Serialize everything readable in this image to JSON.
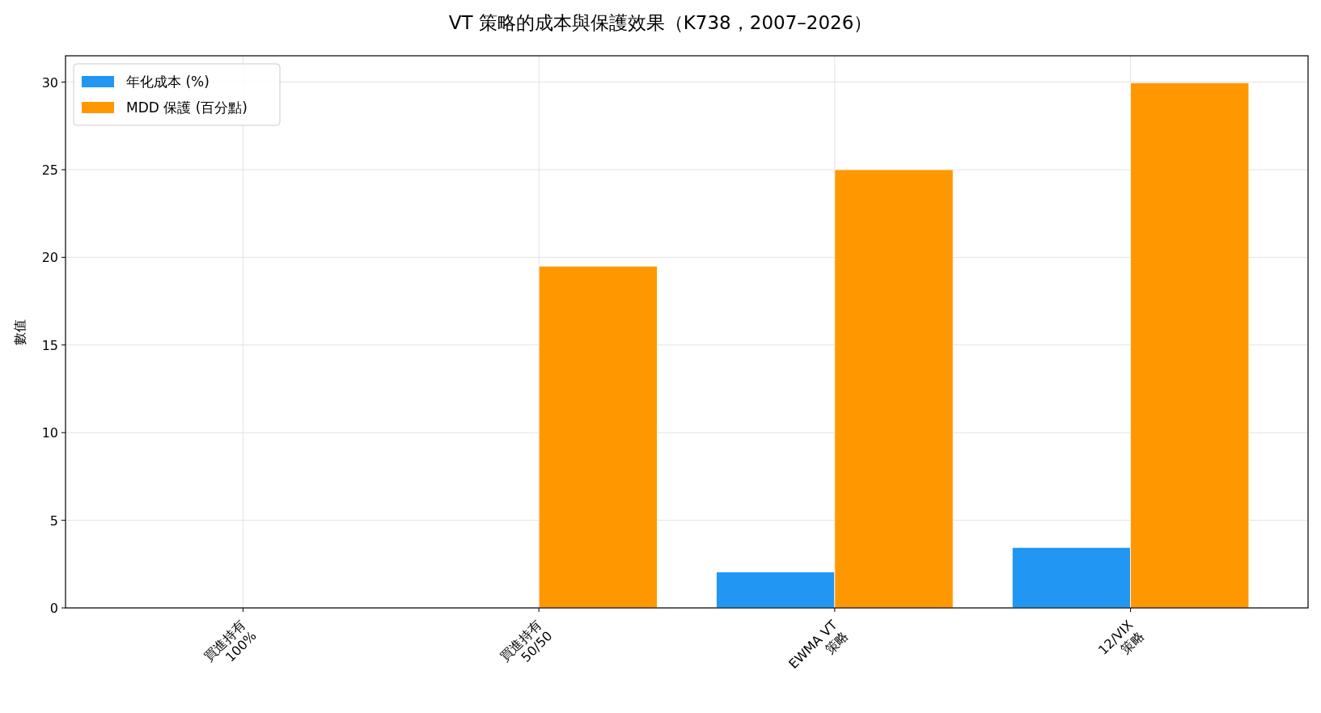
{
  "chart_data": {
    "type": "bar",
    "title": "VT 策略的成本與保護效果（K738，2007–2026）",
    "ylabel": "數值",
    "categories": [
      "買進持有\n100%",
      "買進持有\n50/50",
      "EWMA VT\n策略",
      "12/VIX\n策略"
    ],
    "series": [
      {
        "name": "年化成本 (%)",
        "color": "#2196f3",
        "values": [
          0,
          0,
          2.05,
          3.45
        ]
      },
      {
        "name": "MDD 保護 (百分點)",
        "color": "#ff9800",
        "values": [
          0,
          19.5,
          25,
          29.95
        ]
      }
    ],
    "ylim": [
      0,
      31.5
    ],
    "yticks": [
      0,
      5,
      10,
      15,
      20,
      25,
      30
    ],
    "grid": true,
    "legend": "top left"
  }
}
